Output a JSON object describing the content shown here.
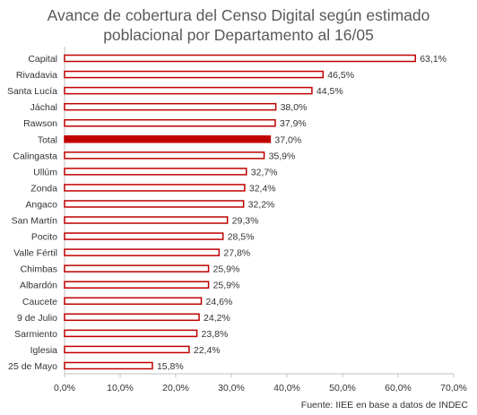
{
  "title_line1": "Avance de cobertura del Censo Digital según estimado",
  "title_line2": "poblacional por Departamento al 16/05",
  "source": "Fuente:  IIEE en base a datos de INDEC",
  "colors": {
    "bar_outline": "#c00000",
    "bar_fill": "#ffffff",
    "highlight_fill": "#c00000",
    "axis": "#bfbfbf"
  },
  "chart_data": {
    "type": "bar",
    "orientation": "horizontal",
    "categories": [
      "Capital",
      "Rivadavia",
      "Santa Lucía",
      "Jáchal",
      "Rawson",
      "Total",
      "Calingasta",
      "Ullúm",
      "Zonda",
      "Angaco",
      "San Martín",
      "Pocito",
      "Valle Fértil",
      "Chimbas",
      "Albardón",
      "Caucete",
      "9 de Julio",
      "Sarmiento",
      "Iglesia",
      "25 de Mayo"
    ],
    "values": [
      63.1,
      46.5,
      44.5,
      38.0,
      37.9,
      37.0,
      35.9,
      32.7,
      32.4,
      32.2,
      29.3,
      28.5,
      27.8,
      25.9,
      25.9,
      24.6,
      24.2,
      23.8,
      22.4,
      15.8
    ],
    "value_labels": [
      "63,1%",
      "46,5%",
      "44,5%",
      "38,0%",
      "37,9%",
      "37,0%",
      "35,9%",
      "32,7%",
      "32,4%",
      "32,2%",
      "29,3%",
      "28,5%",
      "27,8%",
      "25,9%",
      "25,9%",
      "24,6%",
      "24,2%",
      "23,8%",
      "22,4%",
      "15,8%"
    ],
    "highlighted_category": "Total",
    "xlim": [
      0,
      70
    ],
    "xticks": [
      "0,0%",
      "10,0%",
      "20,0%",
      "30,0%",
      "40,0%",
      "50,0%",
      "60,0%",
      "70,0%"
    ],
    "grid": false
  }
}
